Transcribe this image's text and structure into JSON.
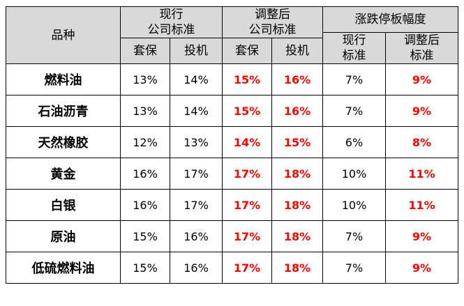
{
  "table": {
    "headers": {
      "variety": "品种",
      "current_standard_line1": "现行",
      "current_standard_line2": "公司标准",
      "adjusted_standard_line1": "调整后",
      "adjusted_standard_line2": "公司标准",
      "limit_range": "涨跌停板幅度",
      "hedge": "套保",
      "speculation": "投机",
      "limit_current_line1": "现行",
      "limit_current_line2": "标准",
      "limit_adjusted_line1": "调整后",
      "limit_adjusted_line2": "标准"
    },
    "rows": [
      {
        "variety": "燃料油",
        "cur_hedge": "13%",
        "cur_spec": "14%",
        "adj_hedge": "15%",
        "adj_spec": "16%",
        "limit_cur": "7%",
        "limit_adj": "9%"
      },
      {
        "variety": "石油沥青",
        "cur_hedge": "13%",
        "cur_spec": "14%",
        "adj_hedge": "15%",
        "adj_spec": "16%",
        "limit_cur": "7%",
        "limit_adj": "9%"
      },
      {
        "variety": "天然橡胶",
        "cur_hedge": "12%",
        "cur_spec": "13%",
        "adj_hedge": "14%",
        "adj_spec": "15%",
        "limit_cur": "6%",
        "limit_adj": "8%"
      },
      {
        "variety": "黄金",
        "cur_hedge": "16%",
        "cur_spec": "17%",
        "adj_hedge": "17%",
        "adj_spec": "18%",
        "limit_cur": "10%",
        "limit_adj": "11%"
      },
      {
        "variety": "白银",
        "cur_hedge": "16%",
        "cur_spec": "17%",
        "adj_hedge": "17%",
        "adj_spec": "18%",
        "limit_cur": "10%",
        "limit_adj": "11%"
      },
      {
        "variety": "原油",
        "cur_hedge": "15%",
        "cur_spec": "16%",
        "adj_hedge": "17%",
        "adj_spec": "18%",
        "limit_cur": "7%",
        "limit_adj": "9%"
      },
      {
        "variety": "低硫燃料油",
        "cur_hedge": "15%",
        "cur_spec": "16%",
        "adj_hedge": "17%",
        "adj_spec": "18%",
        "limit_cur": "7%",
        "limit_adj": "9%"
      }
    ]
  },
  "colors": {
    "header_background": "#d9d9d9",
    "adjusted_value": "#ff0000",
    "border": "#000000"
  }
}
